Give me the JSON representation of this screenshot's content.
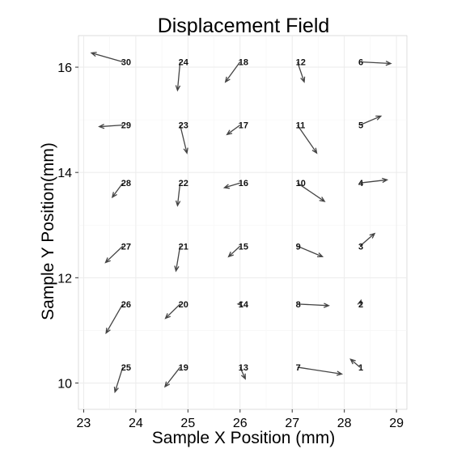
{
  "chart_data": {
    "type": "quiver",
    "title": "Displacement Field",
    "xlabel": "Sample X Position (mm)",
    "ylabel": "Sample Y Position(mm)",
    "xlim": [
      22.9,
      29.2
    ],
    "ylim": [
      9.5,
      16.6
    ],
    "xticks": [
      23,
      24,
      25,
      26,
      27,
      28,
      29
    ],
    "yticks": [
      10,
      12,
      14,
      16
    ],
    "grid": true,
    "points": [
      {
        "id": "1",
        "x": 28.3,
        "y": 10.3,
        "x2": 28.12,
        "y2": 10.45
      },
      {
        "id": "2",
        "x": 28.3,
        "y": 11.5,
        "x2": 28.32,
        "y2": 11.57
      },
      {
        "id": "3",
        "x": 28.3,
        "y": 12.6,
        "x2": 28.58,
        "y2": 12.84
      },
      {
        "id": "4",
        "x": 28.3,
        "y": 13.8,
        "x2": 28.82,
        "y2": 13.86
      },
      {
        "id": "5",
        "x": 28.3,
        "y": 14.9,
        "x2": 28.7,
        "y2": 15.07
      },
      {
        "id": "6",
        "x": 28.3,
        "y": 16.1,
        "x2": 28.89,
        "y2": 16.07
      },
      {
        "id": "7",
        "x": 27.1,
        "y": 10.3,
        "x2": 27.95,
        "y2": 10.17
      },
      {
        "id": "8",
        "x": 27.1,
        "y": 11.5,
        "x2": 27.7,
        "y2": 11.47
      },
      {
        "id": "9",
        "x": 27.1,
        "y": 12.6,
        "x2": 27.58,
        "y2": 12.4
      },
      {
        "id": "10",
        "x": 27.1,
        "y": 13.8,
        "x2": 27.62,
        "y2": 13.45
      },
      {
        "id": "11",
        "x": 27.1,
        "y": 14.9,
        "x2": 27.47,
        "y2": 14.37
      },
      {
        "id": "12",
        "x": 27.1,
        "y": 16.1,
        "x2": 27.23,
        "y2": 15.72
      },
      {
        "id": "13",
        "x": 26.0,
        "y": 10.3,
        "x2": 26.1,
        "y2": 10.08
      },
      {
        "id": "14",
        "x": 26.0,
        "y": 11.5,
        "x2": 25.96,
        "y2": 11.5
      },
      {
        "id": "15",
        "x": 26.0,
        "y": 12.6,
        "x2": 25.78,
        "y2": 12.4
      },
      {
        "id": "16",
        "x": 26.0,
        "y": 13.8,
        "x2": 25.7,
        "y2": 13.71
      },
      {
        "id": "17",
        "x": 26.0,
        "y": 14.9,
        "x2": 25.75,
        "y2": 14.72
      },
      {
        "id": "18",
        "x": 26.0,
        "y": 16.1,
        "x2": 25.72,
        "y2": 15.72
      },
      {
        "id": "19",
        "x": 24.85,
        "y": 10.3,
        "x2": 24.56,
        "y2": 9.93
      },
      {
        "id": "20",
        "x": 24.85,
        "y": 11.5,
        "x2": 24.57,
        "y2": 11.23
      },
      {
        "id": "21",
        "x": 24.85,
        "y": 12.6,
        "x2": 24.77,
        "y2": 12.13
      },
      {
        "id": "22",
        "x": 24.85,
        "y": 13.8,
        "x2": 24.8,
        "y2": 13.37
      },
      {
        "id": "23",
        "x": 24.85,
        "y": 14.9,
        "x2": 24.98,
        "y2": 14.37
      },
      {
        "id": "24",
        "x": 24.85,
        "y": 16.1,
        "x2": 24.8,
        "y2": 15.56
      },
      {
        "id": "25",
        "x": 23.75,
        "y": 10.3,
        "x2": 23.6,
        "y2": 9.83
      },
      {
        "id": "26",
        "x": 23.75,
        "y": 11.5,
        "x2": 23.43,
        "y2": 10.95
      },
      {
        "id": "27",
        "x": 23.75,
        "y": 12.6,
        "x2": 23.42,
        "y2": 12.29
      },
      {
        "id": "28",
        "x": 23.75,
        "y": 13.8,
        "x2": 23.55,
        "y2": 13.53
      },
      {
        "id": "29",
        "x": 23.75,
        "y": 14.9,
        "x2": 23.3,
        "y2": 14.87
      },
      {
        "id": "30",
        "x": 23.75,
        "y": 16.1,
        "x2": 23.15,
        "y2": 16.27
      }
    ]
  }
}
